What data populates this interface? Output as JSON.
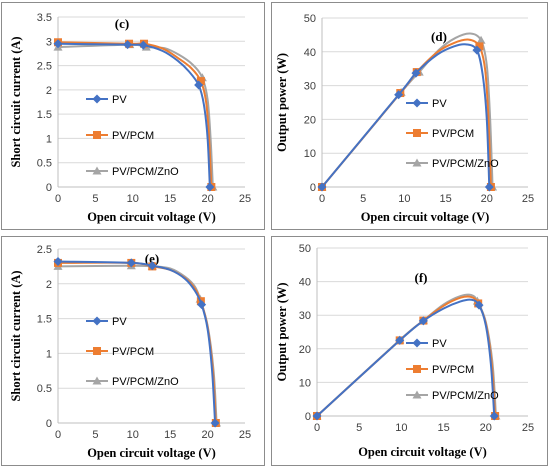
{
  "legend_colors": {
    "PV": "#4472C4",
    "PV/PCM": "#ED7D31",
    "PV/PCM/ZnO": "#A5A5A5"
  },
  "chart_data": [
    {
      "id": "c",
      "type": "line",
      "panel_label": "(c)",
      "xlabel": "Open circuit voltage (V)",
      "ylabel": "Short circuit current (A)",
      "xlim": [
        0,
        25
      ],
      "ylim": [
        0,
        3.5
      ],
      "xticks": [
        "0",
        "5",
        "10",
        "15",
        "20",
        "25"
      ],
      "yticks": [
        "0",
        "0.5",
        "1",
        "1.5",
        "2",
        "2.5",
        "3",
        "3.5"
      ],
      "legend": [
        "PV",
        "PV/PCM",
        "PV/PCM/ZnO"
      ],
      "series": [
        {
          "name": "PV",
          "color": "#4472C4",
          "marker": "diamond",
          "x": [
            0,
            9.3,
            11.4,
            18.8,
            20.3
          ],
          "y": [
            2.95,
            2.93,
            2.92,
            2.1,
            0
          ],
          "curve_x": [
            0,
            9.3,
            11.4,
            14,
            16,
            17.5,
            18.8,
            19.5,
            20.0,
            20.3
          ],
          "curve_y": [
            2.95,
            2.93,
            2.92,
            2.8,
            2.6,
            2.38,
            2.1,
            1.7,
            1.0,
            0
          ]
        },
        {
          "name": "PV/PCM",
          "color": "#ED7D31",
          "marker": "square",
          "x": [
            0,
            9.5,
            11.5,
            19.1,
            20.5
          ],
          "y": [
            2.98,
            2.95,
            2.95,
            2.18,
            0
          ],
          "curve_x": [
            0,
            9.5,
            11.5,
            14,
            16,
            17.8,
            19.1,
            19.8,
            20.2,
            20.5
          ],
          "curve_y": [
            2.98,
            2.95,
            2.95,
            2.85,
            2.66,
            2.45,
            2.18,
            1.75,
            1.0,
            0
          ]
        },
        {
          "name": "PV/PCM/ZnO",
          "color": "#A5A5A5",
          "marker": "triangle",
          "x": [
            0,
            9.6,
            11.8,
            19.3,
            20.7
          ],
          "y": [
            2.88,
            2.93,
            2.88,
            2.25,
            0
          ],
          "curve_x": [
            0,
            9.6,
            11.8,
            14.2,
            16.2,
            18.0,
            19.3,
            20.0,
            20.4,
            20.7
          ],
          "curve_y": [
            2.88,
            2.93,
            2.88,
            2.86,
            2.72,
            2.52,
            2.25,
            1.8,
            1.0,
            0
          ]
        }
      ]
    },
    {
      "id": "d",
      "type": "line",
      "panel_label": "(d)",
      "xlabel": "Open circuit voltage (V)",
      "ylabel": "Output power (W)",
      "xlim": [
        0,
        25
      ],
      "ylim": [
        0,
        50
      ],
      "xticks": [
        "0",
        "5",
        "10",
        "15",
        "20",
        "25"
      ],
      "yticks": [
        "0",
        "10",
        "20",
        "30",
        "40",
        "50"
      ],
      "legend": [
        "PV",
        "PV/PCM",
        "PV/PCM/ZnO"
      ],
      "series": [
        {
          "name": "PV",
          "color": "#4472C4",
          "marker": "diamond",
          "x": [
            0,
            9.3,
            11.4,
            18.8,
            20.3
          ],
          "y": [
            0,
            27.3,
            33.7,
            40.5,
            0
          ],
          "curve_x": [
            0,
            9.3,
            11.4,
            14,
            16,
            17.5,
            18.8,
            19.5,
            20.0,
            20.3
          ],
          "curve_y": [
            0,
            27.3,
            33.7,
            39.2,
            41.6,
            42.2,
            40.5,
            33.2,
            20.0,
            0
          ]
        },
        {
          "name": "PV/PCM",
          "color": "#ED7D31",
          "marker": "square",
          "x": [
            0,
            9.5,
            11.5,
            19.1,
            20.5
          ],
          "y": [
            0,
            27.8,
            34.0,
            41.6,
            0
          ],
          "curve_x": [
            0,
            9.5,
            11.5,
            14,
            16,
            17.8,
            19.1,
            19.8,
            20.2,
            20.5
          ],
          "curve_y": [
            0,
            27.8,
            34.0,
            39.9,
            42.6,
            43.6,
            41.6,
            34.7,
            20.2,
            0
          ]
        },
        {
          "name": "PV/PCM/ZnO",
          "color": "#A5A5A5",
          "marker": "triangle",
          "x": [
            0,
            9.6,
            11.8,
            19.3,
            20.7
          ],
          "y": [
            0,
            28.0,
            34.0,
            43.4,
            0
          ],
          "curve_x": [
            0,
            9.6,
            11.8,
            14.2,
            16.2,
            18.0,
            19.3,
            20.0,
            20.4,
            20.7
          ],
          "curve_y": [
            0,
            28.0,
            34.0,
            40.6,
            44.1,
            45.4,
            43.4,
            36.0,
            20.4,
            0
          ]
        }
      ]
    },
    {
      "id": "e",
      "type": "line",
      "panel_label": "(e)",
      "xlabel": "Open circuit voltage (V)",
      "ylabel": "Short circuit current (A)",
      "xlim": [
        0,
        25
      ],
      "ylim": [
        0,
        2.5
      ],
      "xticks": [
        "0",
        "5",
        "10",
        "15",
        "20",
        "25"
      ],
      "yticks": [
        "0",
        "0.5",
        "1",
        "1.5",
        "2",
        "2.5"
      ],
      "legend": [
        "PV",
        "PV/PCM",
        "PV/PCM/ZnO"
      ],
      "series": [
        {
          "name": "PV",
          "color": "#4472C4",
          "marker": "diamond",
          "x": [
            0,
            9.8,
            12.6,
            19.2,
            21.0
          ],
          "y": [
            2.32,
            2.3,
            2.26,
            1.7,
            0
          ],
          "curve_x": [
            0,
            9.8,
            12.6,
            15,
            17,
            18.3,
            19.2,
            20.0,
            20.6,
            21.0
          ],
          "curve_y": [
            2.32,
            2.3,
            2.26,
            2.2,
            2.07,
            1.9,
            1.7,
            1.35,
            0.75,
            0
          ]
        },
        {
          "name": "PV/PCM",
          "color": "#ED7D31",
          "marker": "square",
          "x": [
            0,
            9.8,
            12.6,
            19.1,
            21.1
          ],
          "y": [
            2.3,
            2.3,
            2.25,
            1.75,
            0
          ],
          "curve_x": [
            0,
            9.8,
            12.6,
            15,
            17,
            18.3,
            19.1,
            20.0,
            20.7,
            21.1
          ],
          "curve_y": [
            2.3,
            2.3,
            2.25,
            2.2,
            2.08,
            1.93,
            1.75,
            1.38,
            0.75,
            0
          ]
        },
        {
          "name": "PV/PCM/ZnO",
          "color": "#A5A5A5",
          "marker": "triangle",
          "x": [
            0,
            9.8,
            12.6,
            19.0,
            21.2
          ],
          "y": [
            2.25,
            2.26,
            2.25,
            1.78,
            0
          ],
          "curve_x": [
            0,
            9.8,
            12.6,
            15,
            17,
            18.3,
            19.0,
            20.0,
            20.8,
            21.2
          ],
          "curve_y": [
            2.25,
            2.26,
            2.25,
            2.22,
            2.1,
            1.96,
            1.78,
            1.4,
            0.75,
            0
          ]
        }
      ]
    },
    {
      "id": "f",
      "type": "line",
      "panel_label": "(f)",
      "xlabel": "Open circuit voltage (V)",
      "ylabel": "Output power (W)",
      "xlim": [
        0,
        25
      ],
      "ylim": [
        0,
        50
      ],
      "xticks": [
        "0",
        "5",
        "10",
        "15",
        "20",
        "25"
      ],
      "yticks": [
        "0",
        "10",
        "20",
        "30",
        "40",
        "50"
      ],
      "legend": [
        "PV",
        "PV/PCM",
        "PV/PCM/ZnO"
      ],
      "series": [
        {
          "name": "PV",
          "color": "#4472C4",
          "marker": "diamond",
          "x": [
            0,
            9.8,
            12.6,
            19.2,
            21.0
          ],
          "y": [
            0,
            22.5,
            28.3,
            33.0,
            0
          ],
          "curve_x": [
            0,
            9.8,
            12.6,
            15,
            17,
            18.3,
            19.2,
            20.0,
            20.6,
            21.0
          ],
          "curve_y": [
            0,
            22.5,
            28.3,
            32.0,
            34.1,
            34.6,
            33.0,
            27.0,
            15.5,
            0
          ]
        },
        {
          "name": "PV/PCM",
          "color": "#ED7D31",
          "marker": "square",
          "x": [
            0,
            9.8,
            12.6,
            19.1,
            21.1
          ],
          "y": [
            0,
            22.5,
            28.4,
            33.5,
            0
          ],
          "curve_x": [
            0,
            9.8,
            12.6,
            15,
            17,
            18.3,
            19.1,
            20.0,
            20.7,
            21.1
          ],
          "curve_y": [
            0,
            22.5,
            28.4,
            32.8,
            35.2,
            35.4,
            33.5,
            27.6,
            15.5,
            0
          ]
        },
        {
          "name": "PV/PCM/ZnO",
          "color": "#A5A5A5",
          "marker": "triangle",
          "x": [
            0,
            9.8,
            12.6,
            19.0,
            21.2
          ],
          "y": [
            0,
            22.6,
            28.4,
            34.2,
            0
          ],
          "curve_x": [
            0,
            9.8,
            12.6,
            15,
            17,
            18.3,
            19.0,
            20.0,
            20.8,
            21.2
          ],
          "curve_y": [
            0,
            22.6,
            28.4,
            33.2,
            35.7,
            36.0,
            34.2,
            28.0,
            15.6,
            0
          ]
        }
      ]
    }
  ]
}
